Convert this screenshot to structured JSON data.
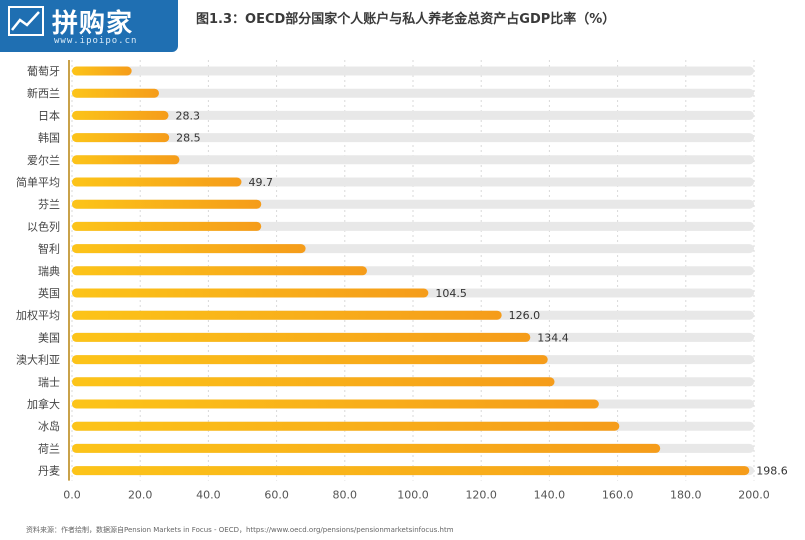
{
  "logo": {
    "text": "拼购家",
    "sub": "www.ipoipo.cn"
  },
  "title": "图1.3：OECD部分国家个人账户与私人养老金总资产占GDP比率（%）",
  "source": "资料来源：作者绘制，数据源自Pension Markets in Focus - OECD，https://www.oecd.org/pensions/pensionmarketsinfocus.htm",
  "colors": {
    "bar_start": "#fcc419",
    "bar_end": "#f59c1a",
    "track": "#e8e8e8",
    "axis": "#c9a24a"
  },
  "chart_data": {
    "type": "bar",
    "orientation": "horizontal",
    "categories": [
      "葡萄牙",
      "新西兰",
      "日本",
      "韩国",
      "爱尔兰",
      "简单平均",
      "芬兰",
      "以色列",
      "智利",
      "瑞典",
      "英国",
      "加权平均",
      "美国",
      "澳大利亚",
      "瑞士",
      "加拿大",
      "冰岛",
      "荷兰",
      "丹麦"
    ],
    "values": [
      17.5,
      25.5,
      28.3,
      28.5,
      31.5,
      49.7,
      55.5,
      55.5,
      68.5,
      86.5,
      104.5,
      126.0,
      134.4,
      139.5,
      141.5,
      154.5,
      160.5,
      172.5,
      198.6
    ],
    "value_labels": [
      "",
      "",
      "28.3",
      "28.5",
      "",
      "49.7",
      "",
      "",
      "",
      "",
      "104.5",
      "126.0",
      "134.4",
      "",
      "",
      "",
      "",
      "",
      "198.6"
    ],
    "xlim": [
      0,
      200
    ],
    "xticks": [
      "0.0",
      "20.0",
      "40.0",
      "60.0",
      "80.0",
      "100.0",
      "120.0",
      "140.0",
      "160.0",
      "180.0",
      "200.0"
    ],
    "grid": true
  }
}
